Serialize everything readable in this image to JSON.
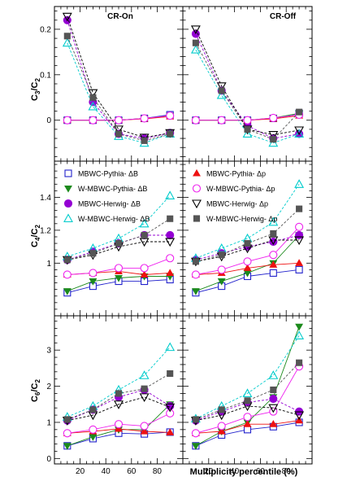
{
  "chart_data": {
    "type": "scatter",
    "xlabel": "Multiplicity percentile (%)",
    "xlim": [
      0,
      100
    ],
    "x_ticks": [
      20,
      40,
      60,
      80
    ],
    "columns": [
      "CR-On",
      "CR-Off"
    ],
    "series": [
      {
        "key": "s1",
        "name": "MBWC-Pythia- ΔB",
        "color": "#2222cc",
        "marker": "open-square",
        "dashed": false
      },
      {
        "key": "s2",
        "name": "W-MBWC-Pythia- ΔB",
        "color": "#1c8a1c",
        "marker": "tri-down-filled",
        "dashed": false
      },
      {
        "key": "s3",
        "name": "MBWC-Herwig- ΔB",
        "color": "#9400d3",
        "marker": "circle-filled",
        "dashed": true
      },
      {
        "key": "s4",
        "name": "W-MBWC-Herwig- ΔB",
        "color": "#00cccc",
        "marker": "open-tri-up",
        "dashed": true
      },
      {
        "key": "s5",
        "name": "MBWC-Pythia- Δp",
        "color": "#ee1111",
        "marker": "tri-up-filled",
        "dashed": false
      },
      {
        "key": "s6",
        "name": "W-MBWC-Pythia- Δp",
        "color": "#ee22ee",
        "marker": "open-circle",
        "dashed": false
      },
      {
        "key": "s7",
        "name": "MBWC-Herwig- Δp",
        "color": "#000000",
        "marker": "open-tri-down",
        "dashed": true
      },
      {
        "key": "s8",
        "name": "W-MBWC-Herwig- Δp",
        "color": "#555555",
        "marker": "square-filled",
        "dashed": true
      }
    ],
    "rows": [
      {
        "ylabel_main": "C",
        "ylabel_sub1": "3",
        "ylabel_sub2": "2",
        "ylim": [
          -0.09,
          0.25
        ],
        "y_ticks": [
          0,
          0.1,
          0.2
        ],
        "y_tick_labels": [
          "0",
          "0.1",
          "0.2"
        ],
        "panels": [
          {
            "x": [
              10,
              30,
              50,
              70,
              90
            ],
            "values": {
              "s1": [
                0.0,
                0.0,
                0.0,
                0.004,
                0.012
              ],
              "s2": [
                0.0,
                0.0,
                0.0,
                0.004,
                0.01
              ],
              "s3": [
                0.22,
                0.04,
                -0.03,
                -0.04,
                -0.028
              ],
              "s4": [
                0.17,
                0.03,
                -0.035,
                -0.05,
                -0.03
              ],
              "s5": [
                0.0,
                0.0,
                0.0,
                0.003,
                0.008
              ],
              "s6": [
                0.0,
                0.0,
                0.0,
                0.004,
                0.01
              ],
              "s7": [
                0.228,
                0.06,
                -0.02,
                -0.038,
                -0.028
              ],
              "s8": [
                0.185,
                0.05,
                -0.03,
                -0.045,
                -0.03
              ]
            }
          },
          {
            "x": [
              10,
              30,
              50,
              70,
              90
            ],
            "values": {
              "s1": [
                0.0,
                0.0,
                0.0,
                0.004,
                0.015
              ],
              "s2": [
                0.0,
                0.0,
                0.0,
                0.005,
                0.015
              ],
              "s3": [
                0.19,
                0.065,
                -0.012,
                -0.04,
                -0.03
              ],
              "s4": [
                0.155,
                0.055,
                -0.03,
                -0.05,
                -0.03
              ],
              "s5": [
                0.0,
                0.0,
                0.0,
                0.003,
                0.01
              ],
              "s6": [
                0.0,
                0.0,
                0.0,
                0.005,
                0.012
              ],
              "s7": [
                0.2,
                0.075,
                -0.02,
                -0.032,
                -0.022
              ],
              "s8": [
                0.17,
                0.065,
                -0.02,
                -0.042,
                0.018
              ]
            }
          }
        ]
      },
      {
        "ylabel_main": "C",
        "ylabel_sub1": "4",
        "ylabel_sub2": "2",
        "ylim": [
          0.68,
          1.62
        ],
        "y_ticks": [
          1.0,
          1.2,
          1.4
        ],
        "y_tick_labels": [
          "1",
          "1.2",
          "1.4"
        ],
        "panels": [
          {
            "x": [
              10,
              30,
              50,
              70,
              90
            ],
            "values": {
              "s1": [
                0.82,
                0.86,
                0.89,
                0.89,
                0.9
              ],
              "s2": [
                0.83,
                0.89,
                0.91,
                0.92,
                0.92
              ],
              "s3": [
                1.02,
                1.07,
                1.12,
                1.17,
                1.17
              ],
              "s4": [
                1.04,
                1.09,
                1.15,
                1.24,
                1.41
              ],
              "s5": [
                0.93,
                0.94,
                0.95,
                0.93,
                0.94
              ],
              "s6": [
                0.93,
                0.94,
                0.97,
                0.97,
                1.03
              ],
              "s7": [
                1.02,
                1.05,
                1.1,
                1.13,
                1.13
              ],
              "s8": [
                1.02,
                1.06,
                1.12,
                1.17,
                1.27
              ]
            }
          },
          {
            "x": [
              10,
              30,
              50,
              70,
              90
            ],
            "values": {
              "s1": [
                0.82,
                0.86,
                0.92,
                0.94,
                0.96
              ],
              "s2": [
                0.83,
                0.89,
                0.94,
                1.0,
                1.17
              ],
              "s3": [
                1.02,
                1.06,
                1.1,
                1.13,
                1.17
              ],
              "s4": [
                1.03,
                1.09,
                1.15,
                1.25,
                1.48
              ],
              "s5": [
                0.93,
                0.94,
                0.97,
                0.99,
                1.0
              ],
              "s6": [
                0.93,
                0.96,
                1.01,
                1.05,
                1.22
              ],
              "s7": [
                1.01,
                1.04,
                1.09,
                1.14,
                1.14
              ],
              "s8": [
                1.01,
                1.05,
                1.12,
                1.18,
                1.33
              ]
            }
          }
        ]
      },
      {
        "ylabel_main": "C",
        "ylabel_sub1": "6",
        "ylabel_sub2": "2",
        "ylim": [
          -0.15,
          3.95
        ],
        "y_ticks": [
          0,
          1,
          2,
          3
        ],
        "y_tick_labels": [
          "0",
          "1",
          "2",
          "3"
        ],
        "panels": [
          {
            "x": [
              10,
              30,
              50,
              70,
              90
            ],
            "values": {
              "s1": [
                0.35,
                0.55,
                0.7,
                0.68,
                0.73
              ],
              "s2": [
                0.35,
                0.6,
                0.8,
                0.8,
                1.5
              ],
              "s3": [
                1.05,
                1.35,
                1.7,
                1.9,
                1.45
              ],
              "s4": [
                1.15,
                1.45,
                1.9,
                2.3,
                3.08
              ],
              "s5": [
                0.7,
                0.75,
                0.82,
                0.75,
                0.72
              ],
              "s6": [
                0.7,
                0.8,
                0.95,
                0.9,
                1.25
              ],
              "s7": [
                1.05,
                1.2,
                1.5,
                1.7,
                1.42
              ],
              "s8": [
                1.08,
                1.35,
                1.8,
                1.93,
                2.35
              ]
            }
          },
          {
            "x": [
              10,
              30,
              50,
              70,
              90
            ],
            "values": {
              "s1": [
                0.35,
                0.65,
                0.8,
                0.88,
                1.0
              ],
              "s2": [
                0.35,
                0.75,
                1.0,
                1.7,
                3.65
              ],
              "s3": [
                1.05,
                1.3,
                1.55,
                1.65,
                1.3
              ],
              "s4": [
                1.1,
                1.45,
                1.8,
                2.3,
                3.4
              ],
              "s5": [
                0.7,
                0.75,
                0.95,
                0.95,
                1.05
              ],
              "s6": [
                0.7,
                0.9,
                1.15,
                1.3,
                2.55
              ],
              "s7": [
                1.05,
                1.2,
                1.45,
                1.4,
                1.2
              ],
              "s8": [
                1.08,
                1.35,
                1.6,
                1.9,
                2.65
              ]
            }
          }
        ]
      }
    ]
  }
}
